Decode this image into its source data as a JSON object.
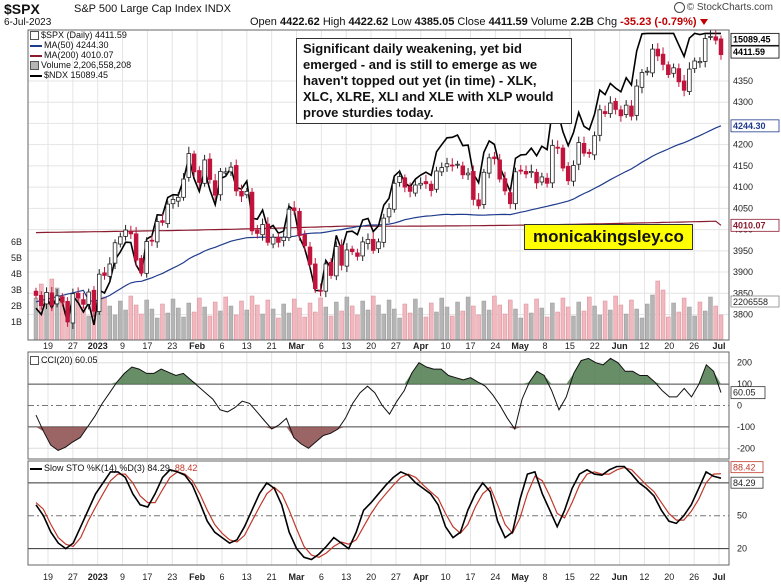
{
  "header": {
    "symbol": "$SPX",
    "name": "S&P 500 Large Cap Index INDX",
    "date": "6-Jul-2023",
    "ohlc_open_label": "Open",
    "open": "4422.62",
    "ohlc_high_label": "High",
    "high": "4422.62",
    "ohlc_low_label": "Low",
    "low": "4385.05",
    "ohlc_close_label": "Close",
    "close": "4411.59",
    "ohlc_volume_label": "Volume",
    "volume": "2.2B",
    "ohlc_chg_label": "Chg",
    "chg": "-35.23 (-0.79%)",
    "source": "© StockCharts.com"
  },
  "legend_price": {
    "spx": "$SPX (Daily) 4411.59",
    "ma50": "MA(50) 4244.30",
    "ma200": "MA(200) 4010.07",
    "volume": "Volume 2,206,558,208",
    "ndx": "$NDX 15089.45"
  },
  "legend_cci": "CCI(20) 60.05",
  "legend_sto_a": "Slow STO %K(14) %D(3) 84.29,",
  "legend_sto_b": "88.42",
  "annotation": {
    "text": "Significant daily weakening, yet bid emerged - and is still to emerge as we haven't topped out yet (in time) - XLK, XLC, XLRE, XLI and XLE with XLP would prove sturdies today."
  },
  "brand": "monicakingsley.co",
  "colors": {
    "up": "#2e8b57",
    "down": "#c0143c",
    "ma50": "#1f3b8c",
    "ma200": "#8b1a2e",
    "ndx": "#000000",
    "vol_up": "#b5b5b5",
    "vol_down": "#f2b8bf",
    "cci_pos": "#4e7a4e",
    "cci_neg": "#8b4a4a",
    "sto_k": "#000000",
    "sto_d": "#c0392b"
  },
  "chart_data": [
    {
      "type": "candlestick",
      "title": "$SPX (Daily)",
      "x_axis_labels": [
        "19",
        "27",
        "2023",
        "9",
        "17",
        "23",
        "Feb",
        "6",
        "13",
        "21",
        "Mar",
        "6",
        "13",
        "20",
        "27",
        "Apr",
        "10",
        "17",
        "24",
        "May",
        "8",
        "15",
        "22",
        "Jun",
        "12",
        "20",
        "26",
        "Jul"
      ],
      "ylim": [
        3740,
        4470
      ],
      "y_ticks": [
        3800,
        3850,
        3900,
        3950,
        4000,
        4050,
        4100,
        4150,
        4200,
        4250,
        4300,
        4350
      ],
      "y_tick_labels": [
        "3800",
        "3850",
        "3900",
        "3950",
        "4000",
        "4050",
        "4100",
        "4150",
        "4200",
        "4250",
        "4300",
        "4350"
      ],
      "volume_ticks": [
        "1B",
        "2B",
        "3B",
        "4B",
        "5B",
        "6B"
      ],
      "close": [
        3845,
        3821,
        3852,
        3822,
        3844,
        3829,
        3783,
        3849,
        3839,
        3824,
        3853,
        3808,
        3895,
        3892,
        3919,
        3969,
        3983,
        3999,
        3990,
        3928,
        3898,
        3972,
        3973,
        4019,
        4017,
        4060,
        4071,
        4076,
        4119,
        4179,
        4136,
        4111,
        4164,
        4118,
        4081,
        4137,
        4136,
        4147,
        4091,
        4079,
        4090,
        3997,
        3991,
        4012,
        3970,
        3982,
        3970,
        3982,
        4048,
        4045,
        3986,
        3962,
        3918,
        3861,
        3855,
        3919,
        3892,
        3960,
        3916,
        3952,
        3948,
        3937,
        3971,
        3977,
        3951,
        3971,
        4027,
        4050,
        4109,
        4125,
        4100,
        4090,
        4105,
        4109,
        4108,
        4092,
        4138,
        4146,
        4155,
        4151,
        4154,
        4129,
        4133,
        4071,
        4056,
        4135,
        4169,
        4167,
        4119,
        4091,
        4061,
        4136,
        4138,
        4131,
        4137,
        4110,
        4124,
        4109,
        4198,
        4192,
        4145,
        4115,
        4151,
        4205,
        4180,
        4179,
        4221,
        4282,
        4273,
        4298,
        4283,
        4268,
        4293,
        4267,
        4338,
        4370,
        4373,
        4425,
        4409,
        4389,
        4365,
        4381,
        4348,
        4328,
        4378,
        4397,
        4396,
        4450,
        4455,
        4446,
        4412
      ],
      "ma50_last": 4244.3,
      "ma200_last": 4010.07,
      "ndx_last": 15089.45,
      "last_close": 4411.59,
      "price_labels": [
        "15089.45",
        "4411.59",
        "4244.30",
        "4010.07"
      ],
      "volume_label": "2206558"
    },
    {
      "type": "line",
      "title": "CCI(20)",
      "ylim": [
        -250,
        250
      ],
      "y_ticks": [
        -200,
        -100,
        0,
        100,
        200
      ],
      "y_tick_labels": [
        "-200",
        "-100",
        "0",
        "100",
        "200"
      ],
      "last_value_label": "60.05",
      "values": [
        -45,
        -120,
        -185,
        -210,
        -195,
        -170,
        -150,
        -100,
        -50,
        10,
        60,
        110,
        150,
        180,
        170,
        150,
        150,
        170,
        155,
        140,
        150,
        120,
        90,
        60,
        30,
        -20,
        -30,
        -10,
        20,
        10,
        -30,
        -70,
        -110,
        -90,
        -60,
        -150,
        -180,
        -200,
        -170,
        -140,
        -130,
        -110,
        -60,
        10,
        60,
        90,
        60,
        0,
        -40,
        20,
        70,
        150,
        200,
        180,
        170,
        170,
        140,
        130,
        120,
        130,
        110,
        90,
        50,
        0,
        -60,
        -110,
        30,
        110,
        160,
        140,
        70,
        -20,
        40,
        150,
        210,
        220,
        200,
        190,
        220,
        200,
        160,
        160,
        140,
        140,
        110,
        70,
        40,
        40,
        80,
        40,
        100,
        190,
        160,
        60.05
      ]
    },
    {
      "type": "line",
      "title": "Slow STO %K(14) %D(3)",
      "ylim": [
        5,
        100
      ],
      "y_ticks": [
        20,
        50,
        80
      ],
      "y_tick_labels": [
        "20",
        "50",
        "80"
      ],
      "k_last_label": "84.29",
      "d_last_label": "88.42",
      "k": [
        60,
        50,
        35,
        25,
        20,
        25,
        40,
        55,
        70,
        80,
        90,
        90,
        85,
        70,
        60,
        58,
        70,
        85,
        92,
        90,
        87,
        78,
        62,
        45,
        35,
        30,
        25,
        28,
        40,
        55,
        70,
        80,
        75,
        60,
        35,
        20,
        12,
        10,
        15,
        22,
        30,
        25,
        20,
        35,
        55,
        62,
        70,
        78,
        85,
        90,
        87,
        80,
        75,
        70,
        60,
        40,
        30,
        35,
        55,
        70,
        80,
        72,
        45,
        30,
        35,
        65,
        88,
        90,
        70,
        55,
        40,
        55,
        75,
        88,
        92,
        88,
        87,
        92,
        95,
        95,
        88,
        80,
        75,
        68,
        55,
        45,
        43,
        50,
        60,
        75,
        90,
        86,
        84.29
      ],
      "d": [
        62,
        56,
        42,
        30,
        24,
        22,
        30,
        45,
        58,
        70,
        82,
        88,
        88,
        80,
        68,
        62,
        62,
        74,
        85,
        90,
        88,
        82,
        70,
        55,
        42,
        34,
        28,
        26,
        32,
        45,
        58,
        70,
        76,
        70,
        55,
        38,
        22,
        14,
        12,
        16,
        22,
        26,
        24,
        28,
        40,
        52,
        62,
        70,
        78,
        85,
        88,
        85,
        78,
        72,
        66,
        52,
        40,
        34,
        42,
        58,
        70,
        76,
        60,
        42,
        34,
        48,
        70,
        86,
        82,
        68,
        52,
        48,
        62,
        78,
        88,
        90,
        88,
        88,
        92,
        94,
        92,
        85,
        78,
        72,
        62,
        52,
        46,
        46,
        54,
        65,
        80,
        88,
        88.42
      ]
    }
  ]
}
